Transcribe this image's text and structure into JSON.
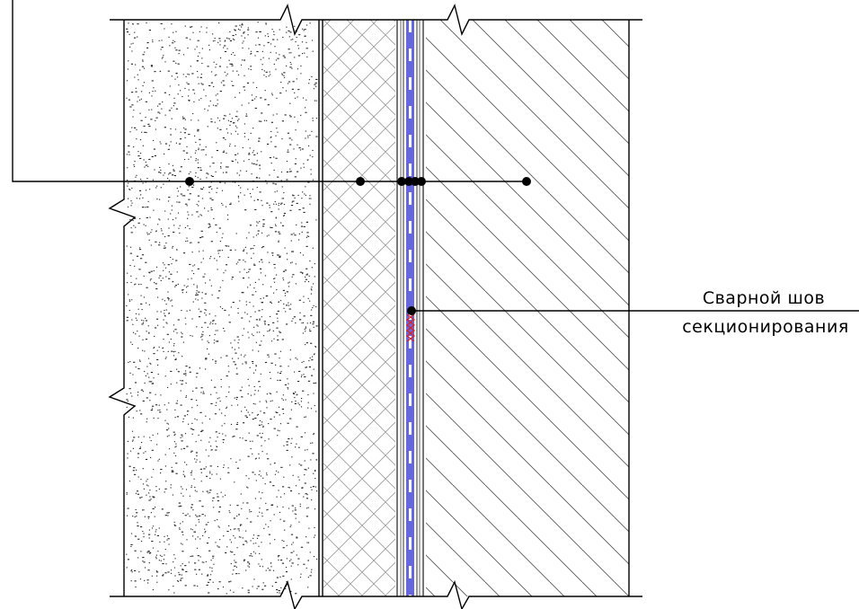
{
  "callout": {
    "line1": "Сварной шов",
    "line2": "секционирования"
  },
  "colors": {
    "line": "#000000",
    "membrane": "#6666dd",
    "weld_seam": "#dd2222",
    "hatch": "#8a8a8a"
  },
  "layers": [
    {
      "name": "concrete",
      "pattern": "dots"
    },
    {
      "name": "insulation",
      "pattern": "crosshatch"
    },
    {
      "name": "membrane",
      "pattern": "dashed-blue"
    },
    {
      "name": "structure",
      "pattern": "diagonal-hatch"
    }
  ]
}
